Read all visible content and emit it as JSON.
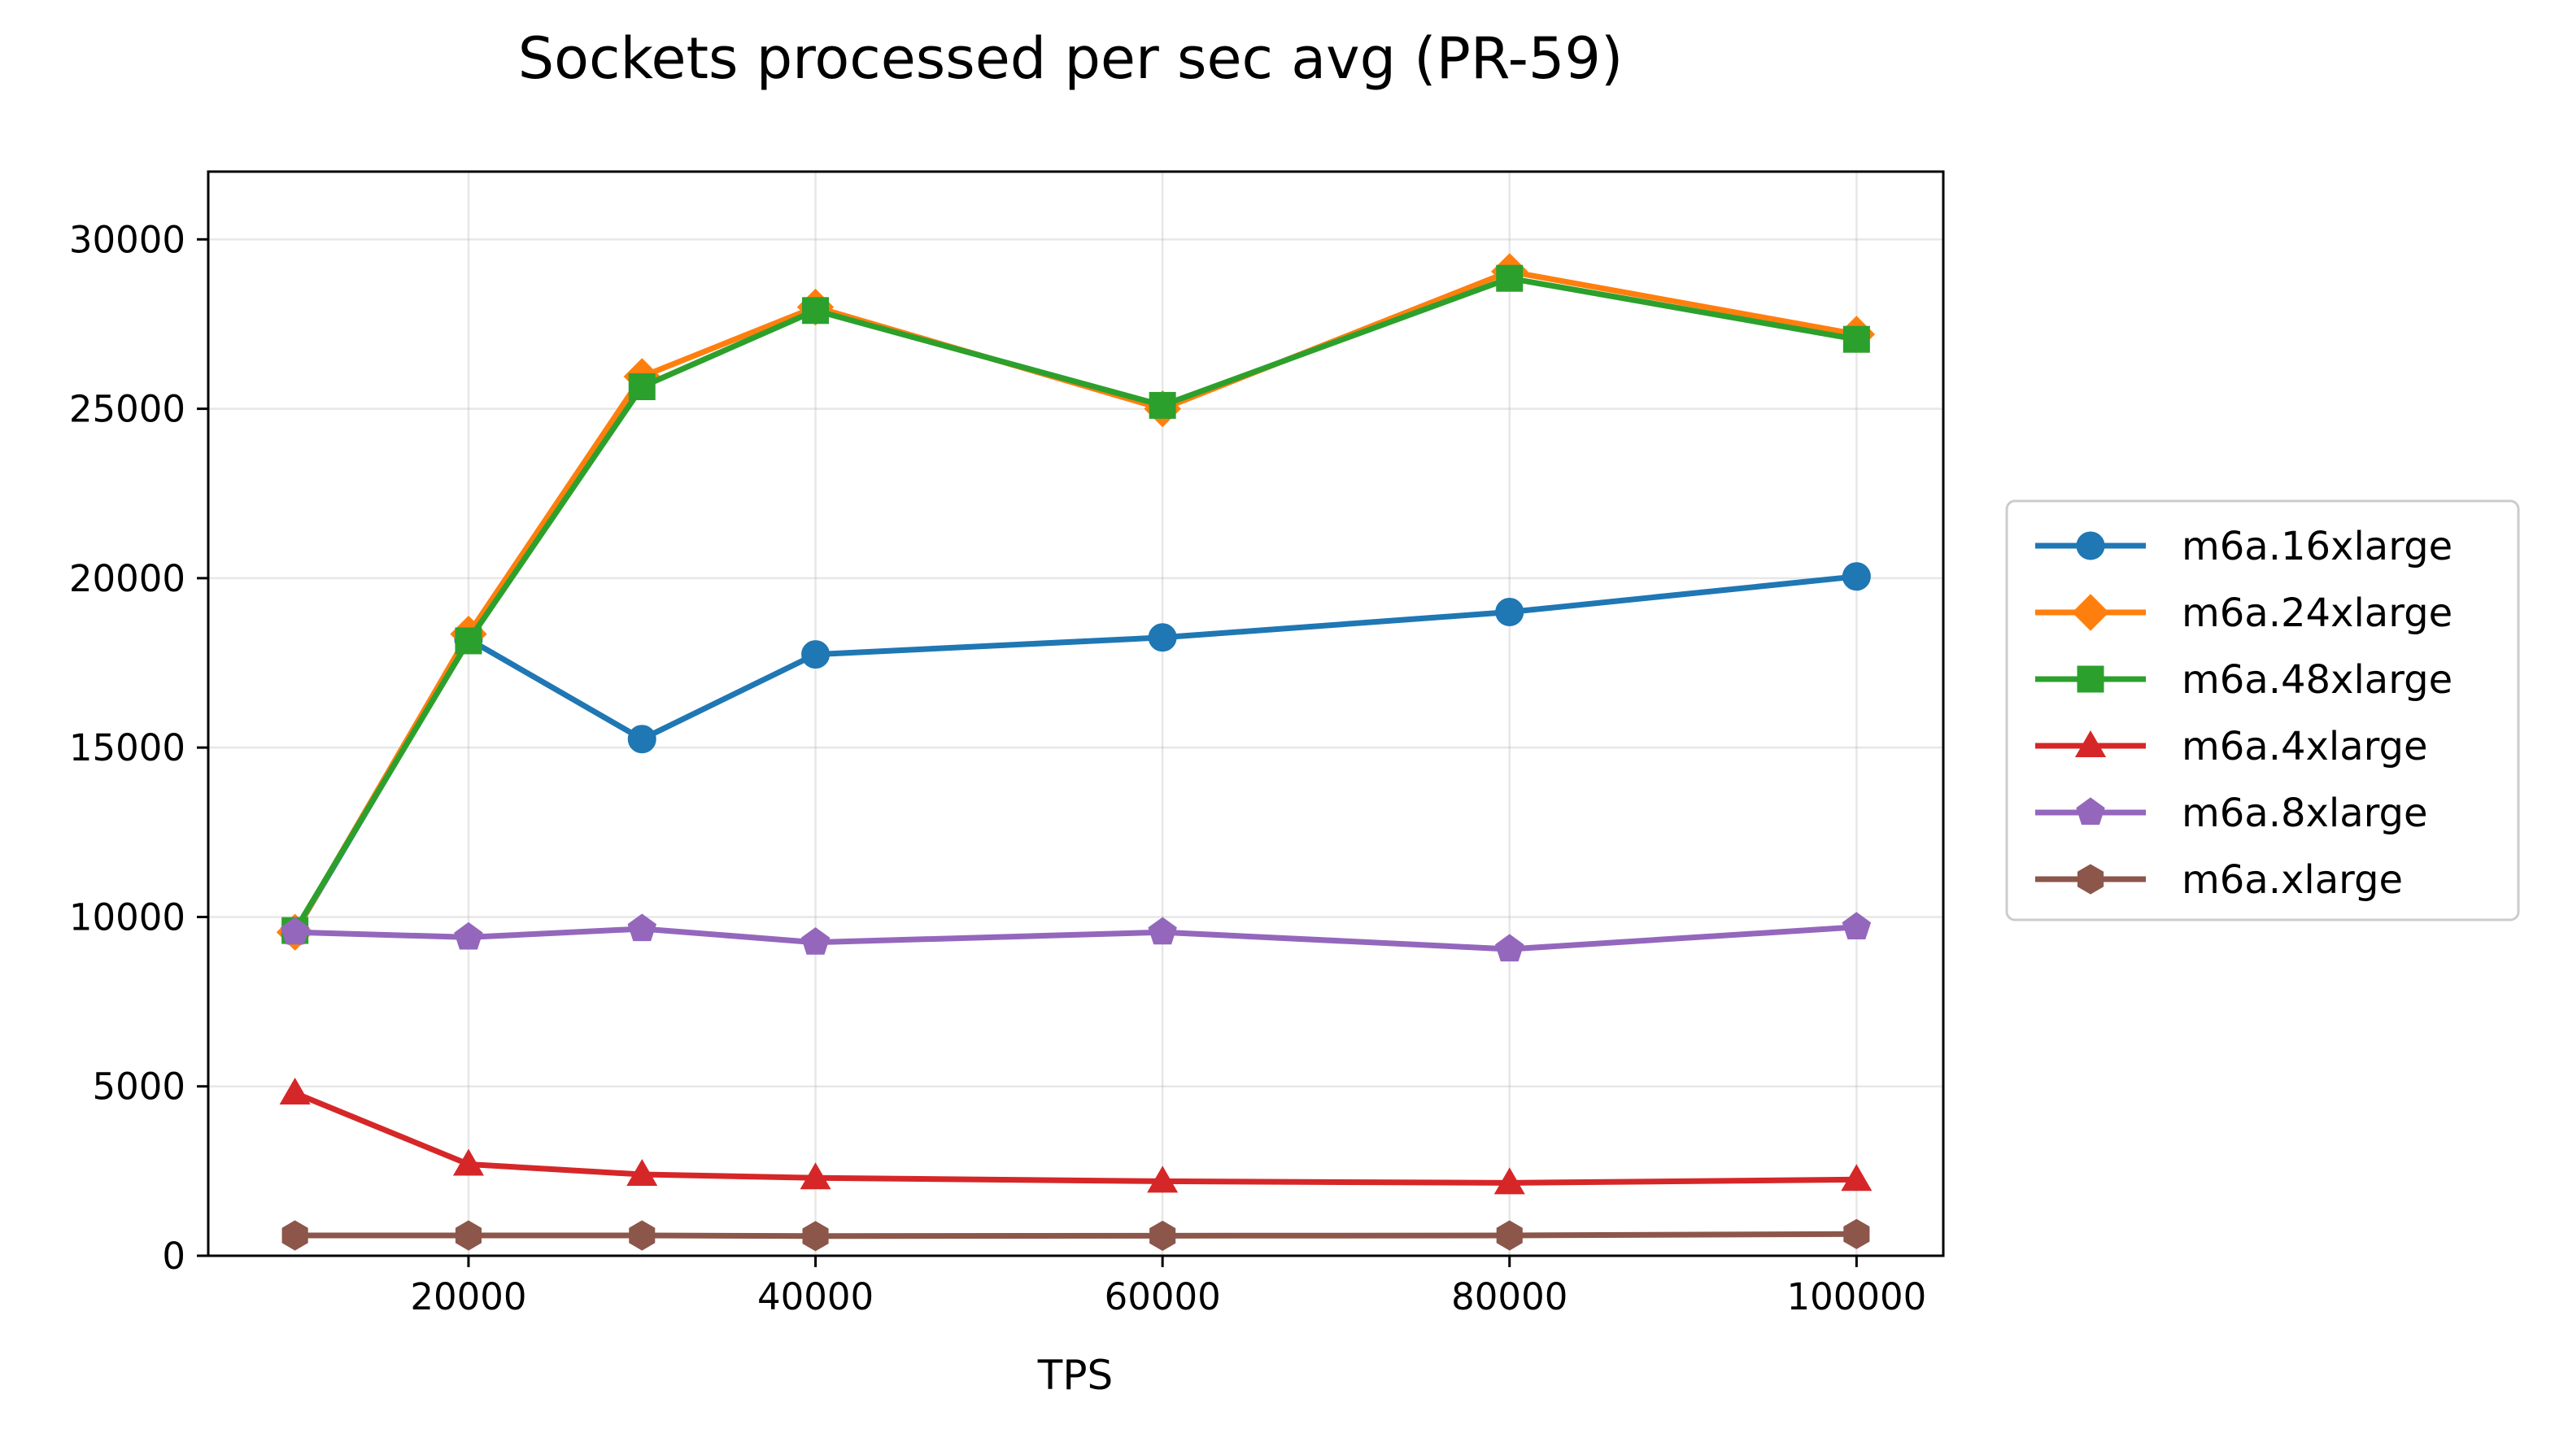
{
  "chart_data": {
    "type": "line",
    "title": "Sockets processed per sec avg (PR-59)",
    "xlabel": "TPS",
    "ylabel": "",
    "x": [
      10000,
      20000,
      30000,
      40000,
      60000,
      80000,
      100000
    ],
    "xlim": [
      5000,
      105000
    ],
    "ylim": [
      0,
      32000
    ],
    "xticks": [
      20000,
      40000,
      60000,
      80000,
      100000
    ],
    "yticks": [
      0,
      5000,
      10000,
      15000,
      20000,
      25000,
      30000
    ],
    "grid": true,
    "legend_position": "right",
    "series": [
      {
        "name": "m6a.16xlarge",
        "color": "#1f77b4",
        "marker": "circle",
        "values": [
          9550,
          18200,
          15250,
          17750,
          18250,
          19000,
          20050
        ]
      },
      {
        "name": "m6a.24xlarge",
        "color": "#ff7f0e",
        "marker": "diamond",
        "values": [
          9550,
          18350,
          25950,
          28000,
          25000,
          29050,
          27200
        ]
      },
      {
        "name": "m6a.48xlarge",
        "color": "#2ca02c",
        "marker": "square",
        "values": [
          9600,
          18150,
          25650,
          27900,
          25100,
          28850,
          27050
        ]
      },
      {
        "name": "m6a.4xlarge",
        "color": "#d62728",
        "marker": "triangle",
        "values": [
          4800,
          2700,
          2400,
          2300,
          2200,
          2150,
          2250
        ]
      },
      {
        "name": "m6a.8xlarge",
        "color": "#9467bd",
        "marker": "pentagon",
        "values": [
          9550,
          9400,
          9650,
          9250,
          9550,
          9050,
          9700
        ]
      },
      {
        "name": "m6a.xlarge",
        "color": "#8c564b",
        "marker": "hexagon",
        "values": [
          600,
          600,
          600,
          580,
          590,
          600,
          640
        ]
      }
    ]
  }
}
